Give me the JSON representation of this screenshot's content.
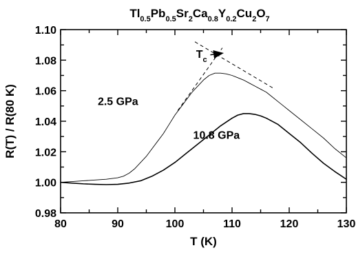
{
  "chart_data": {
    "type": "line",
    "title": "Tl0.5Pb0.5Sr2Ca0.8Y0.2Cu2O7",
    "title_parts": [
      {
        "text": "Tl",
        "sub": false
      },
      {
        "text": "0.5",
        "sub": true
      },
      {
        "text": "Pb",
        "sub": false
      },
      {
        "text": "0.5",
        "sub": true
      },
      {
        "text": "Sr",
        "sub": false
      },
      {
        "text": "2",
        "sub": true
      },
      {
        "text": "Ca",
        "sub": false
      },
      {
        "text": "0.8",
        "sub": true
      },
      {
        "text": "Y",
        "sub": false
      },
      {
        "text": "0.2",
        "sub": true
      },
      {
        "text": "Cu",
        "sub": false
      },
      {
        "text": "2",
        "sub": true
      },
      {
        "text": "O",
        "sub": false
      },
      {
        "text": "7",
        "sub": true
      }
    ],
    "xlabel": "T (K)",
    "ylabel": "R(T) / R(80 K)",
    "xlim": [
      80,
      130
    ],
    "ylim": [
      0.98,
      1.1
    ],
    "xticks": [
      80,
      90,
      100,
      110,
      120,
      130
    ],
    "yticks": [
      0.98,
      1.0,
      1.02,
      1.04,
      1.06,
      1.08,
      1.1
    ],
    "xtick_labels": [
      "80",
      "90",
      "100",
      "110",
      "120",
      "130"
    ],
    "ytick_labels": [
      "0.98",
      "1.00",
      "1.02",
      "1.04",
      "1.06",
      "1.08",
      "1.10"
    ],
    "grid": false,
    "series": [
      {
        "name": "2.5 GPa",
        "color": "#000000",
        "stroke": "thin",
        "x": [
          80,
          82,
          84,
          86,
          88,
          90,
          91,
          92,
          93,
          94,
          95,
          96,
          97,
          98,
          99,
          100,
          101,
          102,
          103,
          104,
          105,
          106,
          107,
          108,
          109,
          110,
          111,
          112,
          113,
          114,
          115,
          116,
          117,
          118,
          119,
          120,
          122,
          124,
          126,
          128,
          130
        ],
        "y": [
          1.0,
          1.0005,
          1.001,
          1.0015,
          1.002,
          1.003,
          1.004,
          1.006,
          1.009,
          1.013,
          1.017,
          1.022,
          1.027,
          1.032,
          1.038,
          1.044,
          1.049,
          1.054,
          1.059,
          1.063,
          1.067,
          1.07,
          1.0715,
          1.0715,
          1.071,
          1.07,
          1.0685,
          1.067,
          1.065,
          1.063,
          1.061,
          1.059,
          1.056,
          1.053,
          1.05,
          1.047,
          1.041,
          1.035,
          1.029,
          1.022,
          1.016
        ]
      },
      {
        "name": "10.8 GPa",
        "color": "#000000",
        "stroke": "thick",
        "x": [
          80,
          82,
          84,
          86,
          88,
          90,
          92,
          94,
          96,
          98,
          100,
          102,
          104,
          106,
          108,
          110,
          111,
          112,
          113,
          114,
          115,
          116,
          118,
          120,
          122,
          124,
          126,
          128,
          130
        ],
        "y": [
          1.0,
          0.9995,
          0.999,
          0.9987,
          0.9985,
          0.9987,
          0.9995,
          1.001,
          1.004,
          1.008,
          1.013,
          1.019,
          1.025,
          1.031,
          1.037,
          1.042,
          1.044,
          1.045,
          1.045,
          1.0445,
          1.0435,
          1.042,
          1.038,
          1.032,
          1.026,
          1.019,
          1.0125,
          1.007,
          1.002
        ]
      }
    ],
    "guide_lines": [
      {
        "x": [
          100.5,
          108.3
        ],
        "y": [
          1.047,
          1.088
        ],
        "dash": true
      },
      {
        "x": [
          103.5,
          117.5
        ],
        "y": [
          1.092,
          1.061
        ],
        "dash": true
      }
    ],
    "annotations": [
      {
        "id": "tc",
        "text": "T",
        "sub": "c",
        "x": 103.7,
        "y": 1.0815
      },
      {
        "id": "low-pressure",
        "text": "2.5 GPa",
        "x": 86.5,
        "y": 1.0505
      },
      {
        "id": "high-pressure",
        "text": "10.8 GPa",
        "x": 103.2,
        "y": 1.0285
      }
    ],
    "arrow": {
      "from": [
        106.2,
        1.0835
      ],
      "to": [
        108.2,
        1.0845
      ]
    }
  }
}
